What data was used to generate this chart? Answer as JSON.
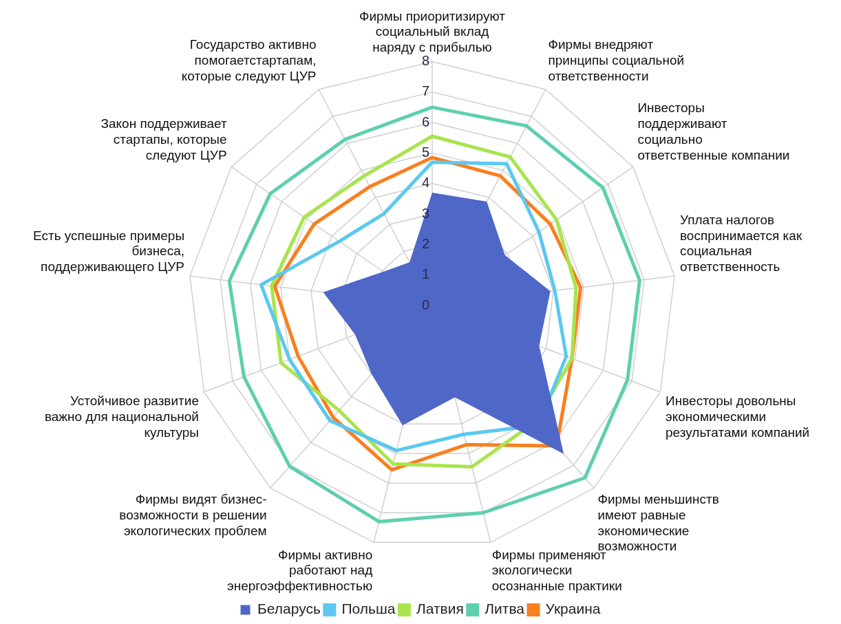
{
  "chart_data": {
    "type": "radar",
    "categories": [
      "Фирмы приоритизируют\nсоциальный вклад\nнаряду с прибылью",
      "Фирмы внедряют\nпринципы социальной\nответственности",
      "Инвесторы\nподдерживают\nсоциально\nответственные компании",
      "Уплата налогов\nвоспринимается как\nсоциальная\nответственность",
      "Инвесторы довольны\nэкономическими\nрезультатами компаний",
      "Фирмы меньшинств\nимеют равные\nэкономические\nвозможности",
      "Фирмы применяют\nэкологически\nосознанные практики",
      "Фирмы активно\nработают над\nэнергоэффективностью",
      "Фирмы видят бизнес-\nвозможности в решении\nэкологических проблем",
      "Устойчивое развитие\nважно для национальной\nкультуры",
      "Есть успешные примеры\nбизнеса,\nподдерживающего ЦУР",
      "Закон поддерживает\nстартапы, которые\nследуют ЦУР",
      "Государство активно\nпомогаетстартапам,\nкоторые следуют ЦУР"
    ],
    "series": [
      {
        "name": "Беларусь",
        "type": "area",
        "color": "#4f67c7",
        "values": [
          3.7,
          3.85,
          2.9,
          3.9,
          3.75,
          6.5,
          3.1,
          4.05,
          3.0,
          2.7,
          3.6,
          1.95,
          1.6
        ]
      },
      {
        "name": "Польша",
        "color": "#5bc8f0",
        "values": [
          4.7,
          5.25,
          4.25,
          4.05,
          4.7,
          5.25,
          4.35,
          4.9,
          5.05,
          5.0,
          5.65,
          3.7,
          3.4
        ]
      },
      {
        "name": "Латвия",
        "color": "#a8e44e",
        "values": [
          5.55,
          5.5,
          4.95,
          4.75,
          4.9,
          5.1,
          5.45,
          5.35,
          4.6,
          5.3,
          5.3,
          5.1,
          4.8
        ]
      },
      {
        "name": "Литва",
        "color": "#5ecfb0",
        "values": [
          6.5,
          6.65,
          6.8,
          6.85,
          6.85,
          7.55,
          7.0,
          7.3,
          7.05,
          6.6,
          6.7,
          6.45,
          6.15
        ]
      },
      {
        "name": "Украина",
        "color": "#f97f1f",
        "values": [
          4.85,
          4.8,
          4.7,
          4.9,
          4.9,
          6.15,
          4.7,
          5.55,
          4.9,
          4.7,
          5.2,
          4.7,
          4.4
        ]
      }
    ],
    "ylim": [
      0,
      8
    ],
    "yticks": [
      0,
      1,
      2,
      3,
      4,
      5,
      6,
      7,
      8
    ],
    "grid": true,
    "legend": "bottom",
    "marker": "none",
    "line_style": "solid"
  }
}
